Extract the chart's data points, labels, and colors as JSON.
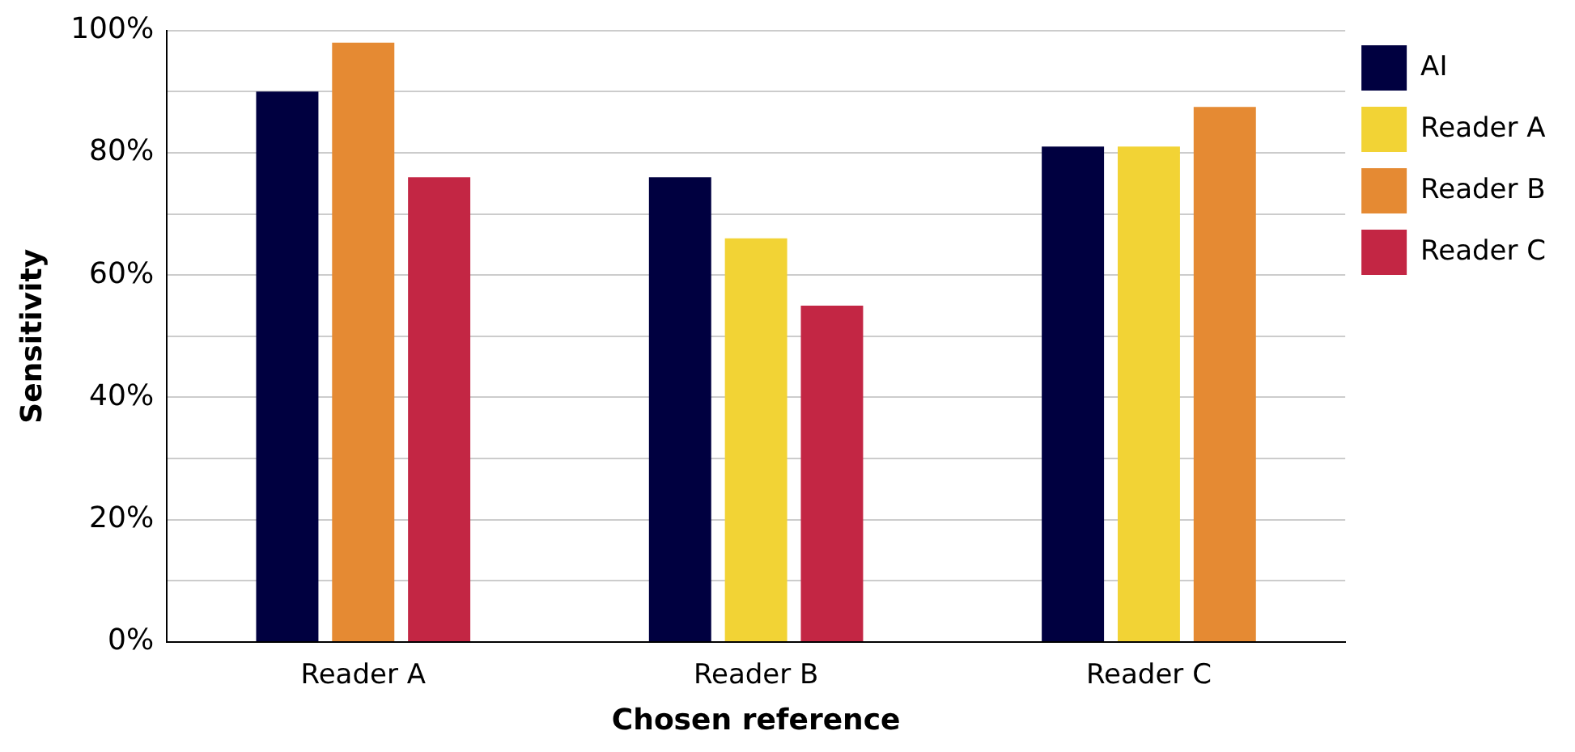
{
  "chart_data": {
    "type": "bar",
    "xlabel": "Chosen reference",
    "ylabel": "Sensitivity",
    "categories": [
      "Reader A",
      "Reader B",
      "Reader C"
    ],
    "series": [
      {
        "name": "AI",
        "color": "#000040",
        "values": [
          90,
          76,
          81
        ]
      },
      {
        "name": "Reader A",
        "color": "#f2d335",
        "values": [
          null,
          66,
          81
        ]
      },
      {
        "name": "Reader B",
        "color": "#e58a33",
        "values": [
          98,
          null,
          87.5
        ]
      },
      {
        "name": "Reader C",
        "color": "#c32644",
        "values": [
          76,
          55,
          null
        ]
      }
    ],
    "ylim": [
      0,
      100
    ],
    "yticks": [
      {
        "value": 0,
        "label": "0%"
      },
      {
        "value": 10,
        "label": null
      },
      {
        "value": 20,
        "label": "20%"
      },
      {
        "value": 30,
        "label": null
      },
      {
        "value": 40,
        "label": "40%"
      },
      {
        "value": 50,
        "label": null
      },
      {
        "value": 60,
        "label": "60%"
      },
      {
        "value": 70,
        "label": null
      },
      {
        "value": 80,
        "label": "80%"
      },
      {
        "value": 90,
        "label": null
      },
      {
        "value": 100,
        "label": "100%"
      }
    ],
    "grid": "y",
    "legend": "top right"
  }
}
